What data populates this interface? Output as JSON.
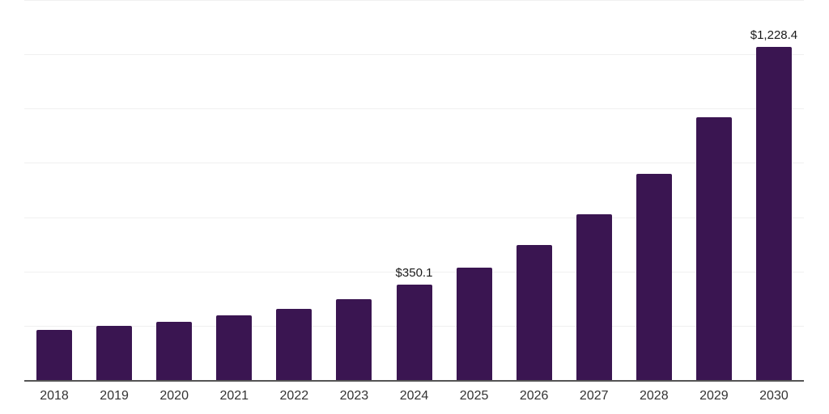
{
  "chart_data": {
    "type": "bar",
    "title": "",
    "xlabel": "",
    "ylabel": "",
    "categories": [
      "2018",
      "2019",
      "2020",
      "2021",
      "2022",
      "2023",
      "2024",
      "2025",
      "2026",
      "2027",
      "2028",
      "2029",
      "2030"
    ],
    "values": [
      184,
      199,
      216,
      237,
      261,
      298,
      350.1,
      413,
      497,
      612,
      761,
      967,
      1228.4
    ],
    "data_labels": [
      "",
      "",
      "",
      "",
      "",
      "",
      "$350.1",
      "",
      "",
      "",
      "",
      "",
      "$1,228.4"
    ],
    "ylim": [
      0,
      1400
    ],
    "gridline_interval": 200,
    "grid": "horizontal-only",
    "y_axis_tick_labels_visible": false,
    "legend": "none",
    "colors": {
      "bar": "#3a1551",
      "gridline": "#f0f0f0",
      "axis_line": "#555555",
      "value_label_text": "#1a1a1a",
      "x_tick_text": "#333333",
      "background": "#ffffff"
    }
  }
}
